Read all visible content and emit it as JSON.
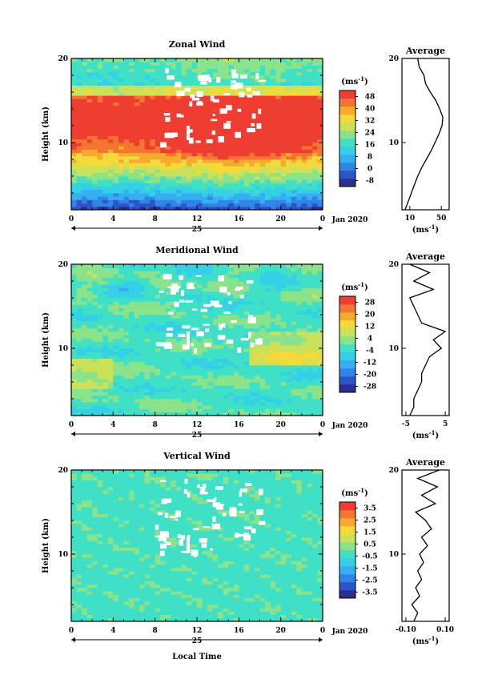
{
  "figure": {
    "xlabel": "Local Time",
    "date_label": "Jan 2020",
    "day_label": "25",
    "cbar_unit_base": "(ms",
    "cbar_unit_exp": "-1",
    "cbar_unit_close": ")",
    "avg_unit_base": "(ms",
    "avg_unit_exp": "-1",
    "avg_unit_close": ")"
  },
  "chart_data": [
    {
      "type": "heatmap",
      "title": "Zonal Wind",
      "ylabel": "Height (km)",
      "x_ticks": [
        "0",
        "4",
        "8",
        "12",
        "16",
        "20",
        "0"
      ],
      "y_ticks": [
        "10",
        "20"
      ],
      "xlim": [
        0,
        24
      ],
      "ylim": [
        2,
        20
      ],
      "colorbar_ticks": [
        "48",
        "40",
        "32",
        "24",
        "16",
        "8",
        "0",
        "-8"
      ],
      "colorbar_range": [
        -12,
        52
      ],
      "field_description_values": {
        "heights_km": [
          2,
          4,
          6,
          8,
          10,
          12,
          14,
          16,
          18,
          19
        ],
        "typical_ms": [
          0,
          12,
          22,
          36,
          48,
          52,
          50,
          40,
          20,
          16
        ]
      },
      "profile": {
        "title": "Average",
        "x_ticks": [
          "10",
          "50"
        ],
        "xlim": [
          0,
          60
        ],
        "heights_km": [
          2,
          3,
          4,
          5,
          6,
          7,
          8,
          9,
          10,
          11,
          12,
          13,
          14,
          15,
          16,
          17,
          18,
          19,
          20
        ],
        "values": [
          4,
          8,
          12,
          16,
          20,
          25,
          31,
          37,
          42,
          47,
          51,
          52,
          48,
          43,
          36,
          30,
          28,
          22,
          20
        ]
      }
    },
    {
      "type": "heatmap",
      "title": "Meridional Wind",
      "ylabel": "Height (km)",
      "x_ticks": [
        "0",
        "4",
        "8",
        "12",
        "16",
        "20",
        "0"
      ],
      "y_ticks": [
        "10",
        "20"
      ],
      "xlim": [
        0,
        24
      ],
      "ylim": [
        2,
        20
      ],
      "colorbar_ticks": [
        "28",
        "20",
        "12",
        "4",
        "-4",
        "-12",
        "-20",
        "-28"
      ],
      "colorbar_range": [
        -32,
        32
      ],
      "profile": {
        "title": "Average",
        "x_ticks": [
          "-5",
          "5"
        ],
        "xlim": [
          -6,
          6
        ],
        "heights_km": [
          2,
          3,
          4,
          5,
          6,
          7,
          8,
          9,
          10,
          11,
          12,
          13,
          14,
          15,
          16,
          17,
          18,
          19,
          20
        ],
        "values": [
          -4,
          -3,
          -3,
          -2,
          -1,
          -1,
          0,
          1,
          4,
          2,
          5,
          -1,
          -2,
          -3,
          -4,
          2,
          -3,
          1,
          -4
        ]
      }
    },
    {
      "type": "heatmap",
      "title": "Vertical Wind",
      "ylabel": "Height (km)",
      "x_ticks": [
        "0",
        "4",
        "8",
        "12",
        "16",
        "20",
        "0"
      ],
      "y_ticks": [
        "10",
        "20"
      ],
      "xlim": [
        0,
        24
      ],
      "ylim": [
        2,
        20
      ],
      "colorbar_ticks": [
        "3.5",
        "2.5",
        "1.5",
        "0.5",
        "-0.5",
        "-1.5",
        "-2.5",
        "-3.5"
      ],
      "colorbar_range": [
        -4,
        4
      ],
      "profile": {
        "title": "Average",
        "x_ticks": [
          "-0.10",
          "0.10"
        ],
        "xlim": [
          -0.12,
          0.12
        ],
        "heights_km": [
          2,
          3,
          4,
          5,
          6,
          7,
          8,
          9,
          10,
          11,
          12,
          13,
          14,
          15,
          16,
          17,
          18,
          19,
          20
        ],
        "values": [
          -0.06,
          -0.04,
          -0.07,
          -0.03,
          -0.05,
          -0.02,
          -0.04,
          -0.01,
          -0.03,
          0.01,
          -0.02,
          0.03,
          0.0,
          -0.05,
          0.05,
          -0.02,
          0.06,
          -0.04,
          0.07
        ]
      }
    }
  ]
}
